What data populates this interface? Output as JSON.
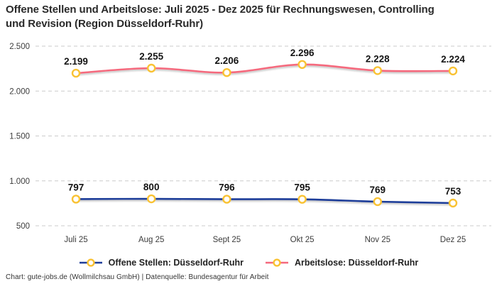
{
  "footer": "Chart: gute-jobs.de (Wollmilchsau GmbH) | Datenquelle: Bundesagentur für Arbeit",
  "colors": {
    "offene_stellen_line": "#1F3D99",
    "arbeitslose_line": "#F5697D",
    "marker_ring": "#F9C233",
    "marker_fill": "#FFFFFF",
    "gridline": "#CBCBCB"
  },
  "chart_data": {
    "type": "line",
    "title": "Offene Stellen und Arbeitslose: Juli 2025 - Dez 2025 für Rechnungswesen, Controlling und Revision (Region Düsseldorf-Ruhr)",
    "categories": [
      "Juli 25",
      "Aug 25",
      "Sept 25",
      "Okt 25",
      "Nov 25",
      "Dez 25"
    ],
    "series": [
      {
        "name": "Offene Stellen: Düsseldorf-Ruhr",
        "values": [
          797,
          800,
          796,
          795,
          769,
          753
        ],
        "color_key": "offene_stellen_line"
      },
      {
        "name": "Arbeitslose: Düsseldorf-Ruhr",
        "values": [
          2199,
          2255,
          2206,
          2296,
          2228,
          2224
        ],
        "color_key": "arbeitslose_line"
      }
    ],
    "y_ticks": [
      500,
      1000,
      1500,
      2000,
      2500
    ],
    "ylim": [
      500,
      2500
    ],
    "grid": "dashed-horizontal",
    "legend_position": "bottom",
    "number_format": "de-DE",
    "xlabel": "",
    "ylabel": ""
  }
}
